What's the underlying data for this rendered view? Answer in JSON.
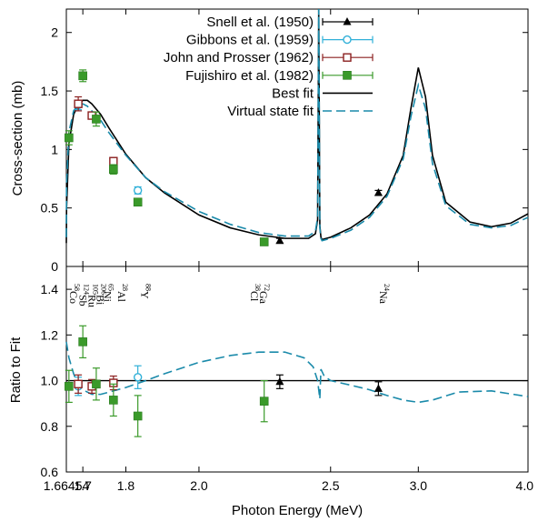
{
  "chart_data": [
    {
      "type": "line",
      "panel": "top",
      "xlabel": "",
      "ylabel": "Cross-section (mb)",
      "ylim": [
        0,
        2.2
      ],
      "yticks": [
        "0",
        "0.5",
        "1",
        "1.5",
        "2"
      ],
      "legend_position": "top-right",
      "series": [
        {
          "name": "Snell et al. (1950)",
          "marker": "filled-triangle",
          "color": "#000000",
          "x": [
            2.28,
            2.75
          ],
          "y": [
            0.22,
            0.63
          ],
          "err": [
            0.02,
            0.02
          ]
        },
        {
          "name": "Gibbons et al. (1959)",
          "marker": "open-circle",
          "color": "#30b0d8",
          "x": [
            1.69,
            1.83
          ],
          "y": [
            1.38,
            0.65
          ],
          "err": [
            0.04,
            0.03
          ]
        },
        {
          "name": "John and Prosser (1962)",
          "marker": "open-square",
          "color": "#8b2020",
          "x": [
            1.69,
            1.72,
            1.77
          ],
          "y": [
            1.39,
            1.29,
            0.9
          ],
          "err": [
            0.06,
            0.03,
            0.03
          ]
        },
        {
          "name": "Fujishiro et al. (1982)",
          "marker": "filled-square",
          "color": "#3a9a2a",
          "x": [
            1.67,
            1.7,
            1.73,
            1.77,
            1.83,
            2.22
          ],
          "y": [
            1.1,
            1.63,
            1.26,
            0.83,
            0.55,
            0.21
          ],
          "err": [
            0.06,
            0.05,
            0.06,
            0.04,
            0.03,
            0.02
          ]
        },
        {
          "name": "Best fit",
          "style": "solid",
          "color": "#000000",
          "x": [
            1.66454,
            1.665,
            1.67,
            1.68,
            1.69,
            1.7,
            1.71,
            1.72,
            1.74,
            1.76,
            1.8,
            1.85,
            1.9,
            2.0,
            2.1,
            2.2,
            2.3,
            2.4,
            2.43,
            2.44,
            2.445,
            2.45,
            2.455,
            2.46,
            2.5,
            2.6,
            2.7,
            2.8,
            2.9,
            2.95,
            3.0,
            3.05,
            3.1,
            3.2,
            3.4,
            3.6,
            3.8,
            4.0
          ],
          "y": [
            0.2,
            0.5,
            1.05,
            1.3,
            1.38,
            1.42,
            1.42,
            1.39,
            1.3,
            1.18,
            0.96,
            0.76,
            0.63,
            0.44,
            0.33,
            0.27,
            0.24,
            0.24,
            0.28,
            0.4,
            2.4,
            0.35,
            0.25,
            0.23,
            0.25,
            0.33,
            0.44,
            0.62,
            0.95,
            1.35,
            1.7,
            1.45,
            0.95,
            0.55,
            0.38,
            0.34,
            0.37,
            0.45
          ]
        },
        {
          "name": "Virtual state fit",
          "style": "dashed",
          "color": "#1a8aaa",
          "x": [
            1.66454,
            1.665,
            1.67,
            1.68,
            1.69,
            1.7,
            1.71,
            1.72,
            1.74,
            1.76,
            1.8,
            1.85,
            1.9,
            2.0,
            2.1,
            2.2,
            2.3,
            2.4,
            2.43,
            2.44,
            2.445,
            2.45,
            2.455,
            2.46,
            2.5,
            2.6,
            2.7,
            2.8,
            2.9,
            2.95,
            3.0,
            3.05,
            3.1,
            3.2,
            3.4,
            3.6,
            3.8,
            4.0
          ],
          "y": [
            0.25,
            0.7,
            1.15,
            1.33,
            1.38,
            1.39,
            1.37,
            1.33,
            1.25,
            1.14,
            0.95,
            0.76,
            0.64,
            0.47,
            0.36,
            0.29,
            0.26,
            0.26,
            0.3,
            0.42,
            2.4,
            0.33,
            0.24,
            0.22,
            0.24,
            0.31,
            0.42,
            0.6,
            0.92,
            1.28,
            1.55,
            1.35,
            0.88,
            0.52,
            0.36,
            0.33,
            0.35,
            0.42
          ]
        }
      ]
    },
    {
      "type": "line",
      "panel": "bottom",
      "xlabel": "Photon Energy (MeV)",
      "ylabel": "Ratio to Fit",
      "ylim": [
        0.6,
        1.5
      ],
      "yticks": [
        "0.6",
        "0.8",
        "1.0",
        "1.2",
        "1.4"
      ],
      "xticks": [
        "1.66454",
        "1.7",
        "1.8",
        "2.0",
        "2.5",
        "3.0",
        "4.0"
      ],
      "x_scale": "reciprocal",
      "reference_line": 1.0,
      "series": [
        {
          "name": "Snell et al. (1950)",
          "marker": "filled-triangle",
          "color": "#000000",
          "x": [
            2.28,
            2.75
          ],
          "y": [
            0.995,
            0.965
          ],
          "err": [
            0.03,
            0.03
          ]
        },
        {
          "name": "Gibbons et al. (1959)",
          "marker": "open-circle",
          "color": "#30b0d8",
          "x": [
            1.69,
            1.83
          ],
          "y": [
            0.975,
            1.015
          ],
          "err": [
            0.04,
            0.05
          ]
        },
        {
          "name": "John and Prosser (1962)",
          "marker": "open-square",
          "color": "#8b2020",
          "x": [
            1.69,
            1.72,
            1.77
          ],
          "y": [
            0.985,
            0.975,
            0.99
          ],
          "err": [
            0.04,
            0.03,
            0.03
          ]
        },
        {
          "name": "Fujishiro et al. (1982)",
          "marker": "filled-square",
          "color": "#3a9a2a",
          "x": [
            1.67,
            1.7,
            1.73,
            1.77,
            1.83,
            2.22
          ],
          "y": [
            0.975,
            1.17,
            0.985,
            0.915,
            0.845,
            0.91
          ],
          "err": [
            0.07,
            0.07,
            0.07,
            0.07,
            0.09,
            0.09
          ]
        },
        {
          "name": "Virtual state fit",
          "style": "dashed",
          "color": "#1a8aaa",
          "x": [
            1.66454,
            1.67,
            1.68,
            1.69,
            1.7,
            1.72,
            1.74,
            1.76,
            1.8,
            1.85,
            1.9,
            2.0,
            2.1,
            2.2,
            2.3,
            2.38,
            2.42,
            2.44,
            2.45,
            2.455,
            2.47,
            2.5,
            2.6,
            2.7,
            2.8,
            2.9,
            3.0,
            3.1,
            3.3,
            3.6,
            4.0
          ],
          "y": [
            1.17,
            1.1,
            1.03,
            0.98,
            0.96,
            0.94,
            0.94,
            0.95,
            0.97,
            1.0,
            1.03,
            1.08,
            1.11,
            1.125,
            1.125,
            1.1,
            1.06,
            1.0,
            0.92,
            1.05,
            1.02,
            1.0,
            0.98,
            0.96,
            0.935,
            0.915,
            0.905,
            0.915,
            0.95,
            0.955,
            0.93
          ]
        }
      ]
    }
  ],
  "isotopes": [
    {
      "mass": "58",
      "sym": "Co",
      "x": 1.67
    },
    {
      "mass": "124",
      "sym": "Sb",
      "x": 1.6905
    },
    {
      "mass": "105",
      "sym": "Ru",
      "x": 1.7108
    },
    {
      "mass": "206",
      "sym": "Bi",
      "x": 1.7295
    },
    {
      "mass": "65",
      "sym": "Ni",
      "x": 1.7456
    },
    {
      "mass": "28",
      "sym": "Al",
      "x": 1.7788
    },
    {
      "mass": "88",
      "sym": "Y",
      "x": 1.8361
    },
    {
      "mass": "38",
      "sym": "Cl",
      "x": 2.1676
    },
    {
      "mass": "72",
      "sym": "Ga",
      "x": 2.2016
    },
    {
      "mass": "24",
      "sym": "Na",
      "x": 2.7541
    }
  ]
}
